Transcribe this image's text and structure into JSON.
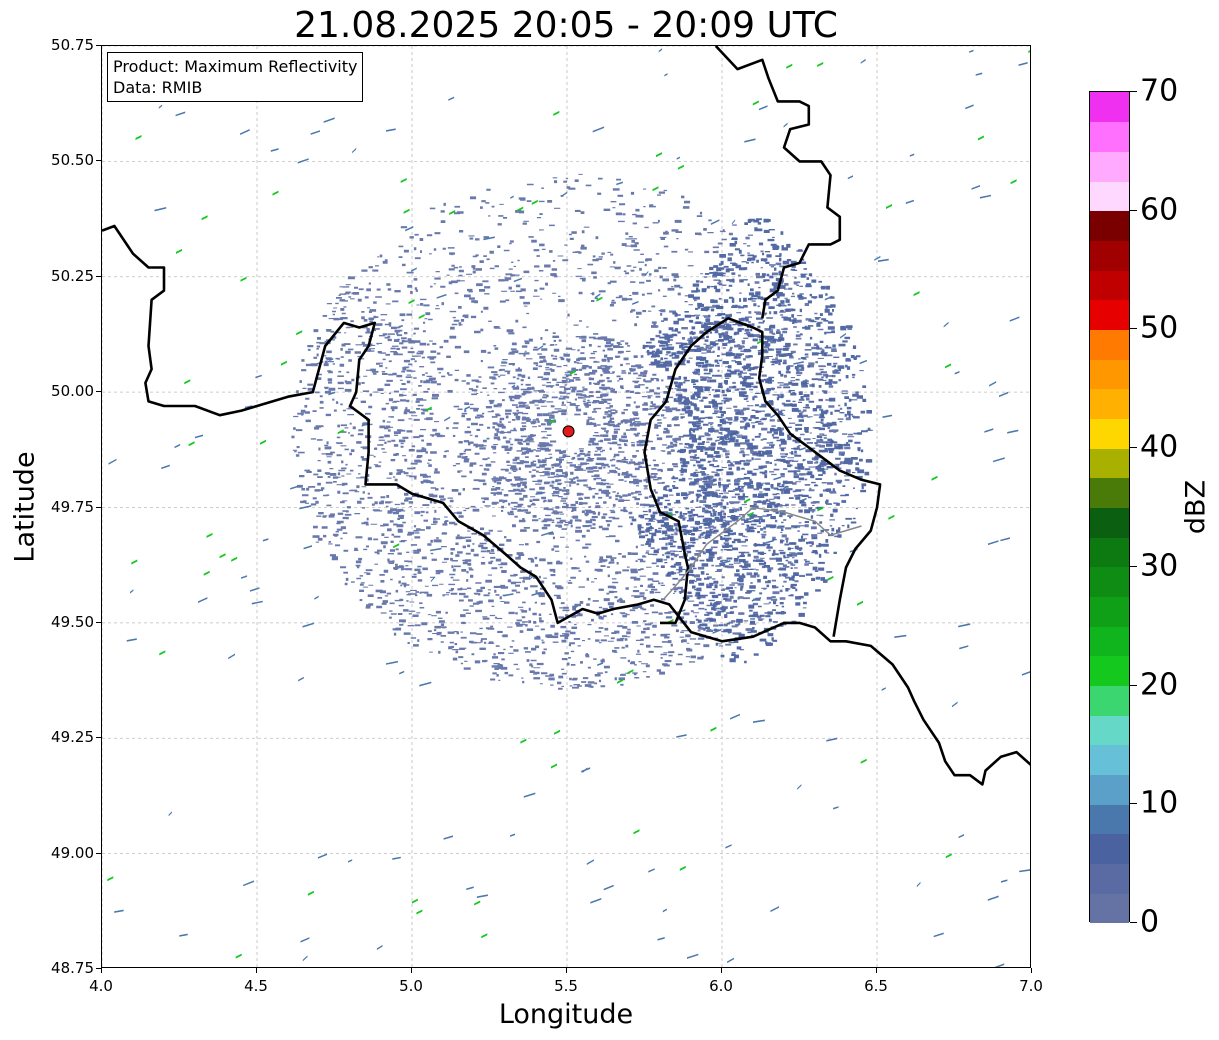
{
  "figure": {
    "title": "21.08.2025 20:05 - 20:09 UTC",
    "xlabel": "Longitude",
    "ylabel": "Latitude",
    "info": {
      "product": "Product: Maximum Reflectivity",
      "source": "Data: RMIB"
    }
  },
  "map": {
    "lon_range": [
      4.0,
      7.0
    ],
    "lat_range": [
      48.75,
      50.75
    ],
    "x_ticks": [
      "4.0",
      "4.5",
      "5.0",
      "5.5",
      "6.0",
      "6.5",
      "7.0"
    ],
    "y_ticks": [
      "48.75",
      "49.00",
      "49.25",
      "49.50",
      "49.75",
      "50.00",
      "50.25",
      "50.50",
      "50.75"
    ],
    "grid": true,
    "radar_site": {
      "lon": 5.505,
      "lat": 49.915,
      "marker_color": "#e31a1c"
    },
    "borders": [
      {
        "name": "border-west",
        "points": [
          [
            4.0,
            50.35
          ],
          [
            4.04,
            50.36
          ],
          [
            4.1,
            50.3
          ],
          [
            4.15,
            50.27
          ],
          [
            4.2,
            50.27
          ],
          [
            4.2,
            50.22
          ],
          [
            4.16,
            50.2
          ],
          [
            4.15,
            50.1
          ],
          [
            4.16,
            50.05
          ],
          [
            4.14,
            50.02
          ],
          [
            4.15,
            49.98
          ],
          [
            4.2,
            49.97
          ],
          [
            4.3,
            49.97
          ],
          [
            4.38,
            49.95
          ],
          [
            4.45,
            49.96
          ],
          [
            4.5,
            49.97
          ],
          [
            4.6,
            49.99
          ],
          [
            4.68,
            50.0
          ],
          [
            4.7,
            50.05
          ],
          [
            4.72,
            50.1
          ],
          [
            4.78,
            50.15
          ],
          [
            4.83,
            50.14
          ],
          [
            4.88,
            50.15
          ],
          [
            4.86,
            50.1
          ],
          [
            4.83,
            50.07
          ],
          [
            4.82,
            50.0
          ],
          [
            4.8,
            49.97
          ],
          [
            4.86,
            49.94
          ],
          [
            4.86,
            49.87
          ],
          [
            4.85,
            49.8
          ],
          [
            4.95,
            49.8
          ],
          [
            5.0,
            49.78
          ],
          [
            5.1,
            49.76
          ],
          [
            5.15,
            49.72
          ],
          [
            5.23,
            49.69
          ],
          [
            5.3,
            49.65
          ],
          [
            5.35,
            49.62
          ],
          [
            5.4,
            49.6
          ],
          [
            5.45,
            49.55
          ],
          [
            5.47,
            49.5
          ],
          [
            5.55,
            49.53
          ],
          [
            5.6,
            49.52
          ],
          [
            5.65,
            49.53
          ],
          [
            5.73,
            49.54
          ],
          [
            5.78,
            49.55
          ],
          [
            5.83,
            49.54
          ],
          [
            5.9,
            49.48
          ],
          [
            6.0,
            49.46
          ],
          [
            6.1,
            49.47
          ],
          [
            6.2,
            49.5
          ],
          [
            6.25,
            49.5
          ],
          [
            6.3,
            49.49
          ],
          [
            6.35,
            49.46
          ],
          [
            6.4,
            49.46
          ],
          [
            6.48,
            49.45
          ],
          [
            6.55,
            49.41
          ],
          [
            6.6,
            49.36
          ],
          [
            6.62,
            49.33
          ],
          [
            6.65,
            49.29
          ],
          [
            6.7,
            49.24
          ],
          [
            6.72,
            49.2
          ],
          [
            6.75,
            49.17
          ],
          [
            6.8,
            49.17
          ],
          [
            6.84,
            49.15
          ],
          [
            6.85,
            49.18
          ],
          [
            6.9,
            49.21
          ],
          [
            6.95,
            49.22
          ],
          [
            7.0,
            49.19
          ]
        ]
      },
      {
        "name": "border-east",
        "points": [
          [
            5.8,
            49.5
          ],
          [
            5.85,
            49.5
          ],
          [
            5.88,
            49.55
          ],
          [
            5.89,
            49.62
          ],
          [
            5.88,
            49.65
          ],
          [
            5.86,
            49.72
          ],
          [
            5.8,
            49.74
          ],
          [
            5.77,
            49.79
          ],
          [
            5.75,
            49.87
          ],
          [
            5.77,
            49.94
          ],
          [
            5.82,
            49.98
          ],
          [
            5.85,
            50.05
          ],
          [
            5.9,
            50.1
          ],
          [
            5.95,
            50.13
          ],
          [
            6.02,
            50.16
          ],
          [
            6.1,
            50.14
          ],
          [
            6.13,
            50.13
          ],
          [
            6.13,
            50.08
          ],
          [
            6.12,
            50.03
          ],
          [
            6.14,
            49.98
          ],
          [
            6.18,
            49.95
          ],
          [
            6.22,
            49.91
          ],
          [
            6.3,
            49.87
          ],
          [
            6.38,
            49.83
          ],
          [
            6.45,
            49.81
          ],
          [
            6.51,
            49.8
          ],
          [
            6.5,
            49.75
          ],
          [
            6.48,
            49.7
          ],
          [
            6.43,
            49.66
          ],
          [
            6.4,
            49.62
          ],
          [
            6.38,
            49.55
          ],
          [
            6.36,
            49.47
          ]
        ]
      },
      {
        "name": "border-northeast",
        "points": [
          [
            5.98,
            50.75
          ],
          [
            6.05,
            50.7
          ],
          [
            6.13,
            50.72
          ],
          [
            6.15,
            50.68
          ],
          [
            6.18,
            50.63
          ],
          [
            6.25,
            50.63
          ],
          [
            6.28,
            50.62
          ],
          [
            6.28,
            50.58
          ],
          [
            6.22,
            50.57
          ],
          [
            6.2,
            50.53
          ],
          [
            6.25,
            50.5
          ],
          [
            6.32,
            50.5
          ],
          [
            6.35,
            50.47
          ],
          [
            6.34,
            50.4
          ],
          [
            6.38,
            50.38
          ],
          [
            6.38,
            50.33
          ],
          [
            6.35,
            50.32
          ],
          [
            6.28,
            50.32
          ],
          [
            6.25,
            50.28
          ],
          [
            6.2,
            50.27
          ],
          [
            6.18,
            50.22
          ],
          [
            6.14,
            50.2
          ],
          [
            6.13,
            50.16
          ]
        ]
      }
    ],
    "regional_border": {
      "name": "luxembourg-internal",
      "color": "#888888",
      "points": [
        [
          5.81,
          49.55
        ],
        [
          5.85,
          49.58
        ],
        [
          5.9,
          49.62
        ],
        [
          5.95,
          49.67
        ],
        [
          6.05,
          49.72
        ],
        [
          6.1,
          49.75
        ],
        [
          6.2,
          49.74
        ],
        [
          6.3,
          49.72
        ],
        [
          6.35,
          49.69
        ],
        [
          6.4,
          49.7
        ],
        [
          6.45,
          49.71
        ]
      ]
    }
  },
  "legend": {
    "title": "dBZ",
    "range": [
      0,
      70
    ],
    "ticks": [
      "0",
      "10",
      "20",
      "30",
      "40",
      "50",
      "60",
      "70"
    ],
    "colors": [
      "#6473a3",
      "#5a6aa3",
      "#4a62a0",
      "#4a78ad",
      "#5aa0c8",
      "#66c0d8",
      "#66d8c8",
      "#3cd670",
      "#14c81e",
      "#10b41c",
      "#10a018",
      "#0f8c14",
      "#0c7a10",
      "#0a6010",
      "#4a7a08",
      "#a8b000",
      "#ffd700",
      "#ffb000",
      "#ff9800",
      "#ff7a00",
      "#e60000",
      "#c00000",
      "#a00000",
      "#7a0000",
      "#ffd8ff",
      "#ffaaff",
      "#ff70ff",
      "#f030f0"
    ]
  }
}
